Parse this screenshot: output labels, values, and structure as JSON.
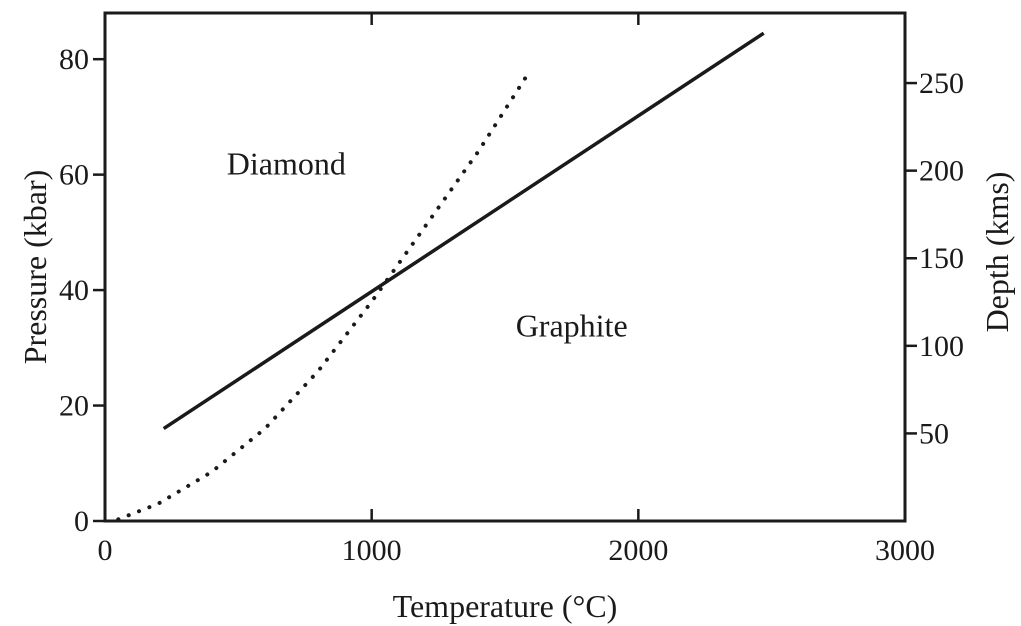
{
  "chart_data": {
    "type": "line",
    "title": "",
    "xlabel": "Temperature (°C)",
    "ylabel": "Pressure (kbar)",
    "y2label": "Depth (kms)",
    "xlim": [
      0,
      3000
    ],
    "ylim": [
      0,
      88
    ],
    "y2lim": [
      0,
      290
    ],
    "grid": false,
    "x_ticks": [
      0,
      1000,
      2000,
      3000
    ],
    "x_tick_labels": [
      "0",
      "1000",
      "2000",
      "3000"
    ],
    "y_ticks": [
      0,
      20,
      40,
      60,
      80
    ],
    "y_tick_labels": [
      "0",
      "20",
      "40",
      "60",
      "80"
    ],
    "y2_ticks": [
      50,
      100,
      150,
      200,
      250
    ],
    "y2_tick_labels": [
      "50",
      "100",
      "150",
      "200",
      "250"
    ],
    "series": [
      {
        "style": "solid",
        "color": "#1a1a1a",
        "x": [
          220,
          2470
        ],
        "y": [
          16,
          84.5
        ]
      },
      {
        "style": "dotted",
        "color": "#1a1a1a",
        "x": [
          50,
          200,
          400,
          600,
          800,
          1000,
          1200,
          1400,
          1580
        ],
        "y": [
          0.3,
          3,
          8.5,
          16,
          26,
          38,
          51,
          64,
          77
        ]
      }
    ],
    "annotations": [
      {
        "text": "Diamond",
        "x": 680,
        "y": 60
      },
      {
        "text": "Graphite",
        "x": 1750,
        "y": 32
      }
    ]
  }
}
